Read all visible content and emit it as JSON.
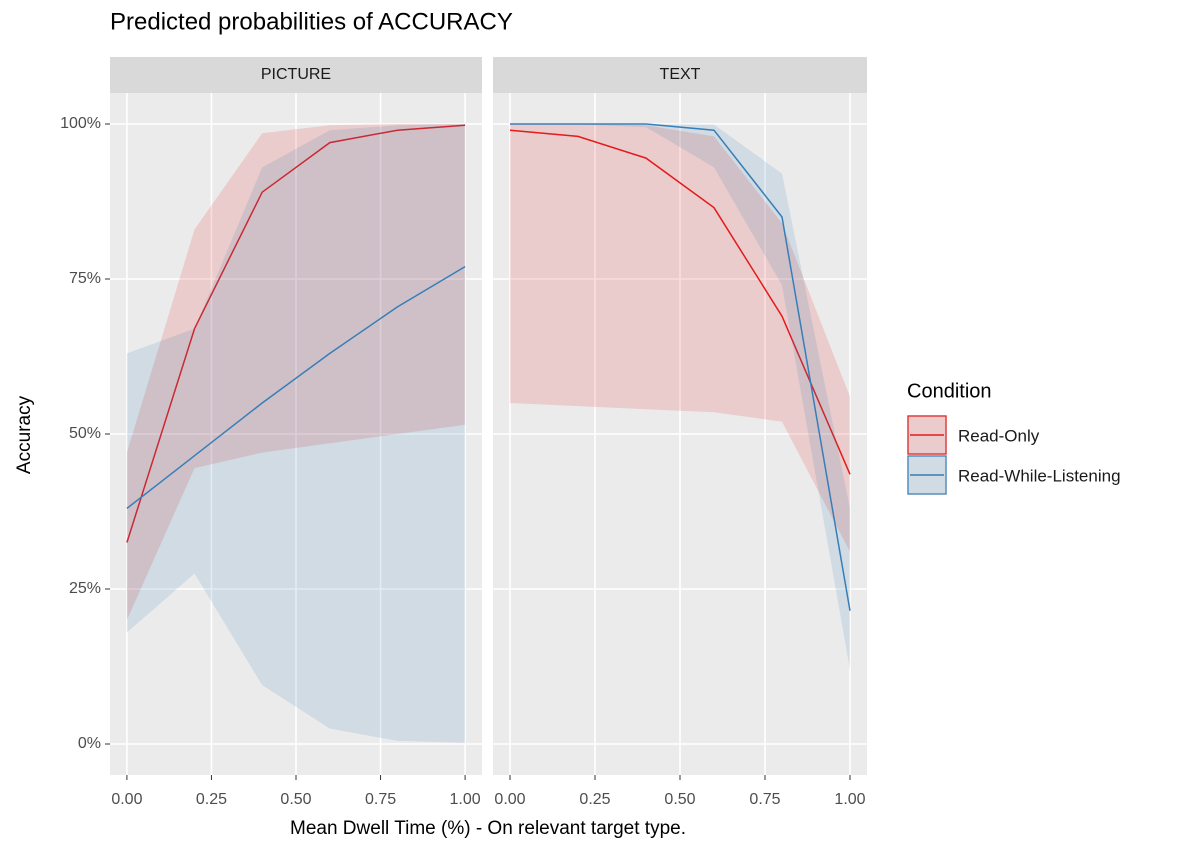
{
  "chart_data": {
    "type": "line",
    "title": "Predicted probabilities of ACCURACY",
    "x_label": "Mean Dwell Time (%) - On relevant target type.",
    "y_label": "Accuracy",
    "legend_title": "Condition",
    "legend_position": "right",
    "grid": true,
    "x": [
      0,
      0.2,
      0.4,
      0.6,
      0.8,
      1.0
    ],
    "xlim": [
      -0.05,
      1.05
    ],
    "xticks": [
      {
        "value": 0,
        "label": "0.00"
      },
      {
        "value": 0.25,
        "label": "0.25"
      },
      {
        "value": 0.5,
        "label": "0.50"
      },
      {
        "value": 0.75,
        "label": "0.75"
      },
      {
        "value": 1,
        "label": "1.00"
      }
    ],
    "ylim": [
      -5,
      105
    ],
    "yticks": [
      {
        "value": 0,
        "label": "0%"
      },
      {
        "value": 25,
        "label": "25%"
      },
      {
        "value": 50,
        "label": "50%"
      },
      {
        "value": 75,
        "label": "75%"
      },
      {
        "value": 100,
        "label": "100%"
      }
    ],
    "series": [
      {
        "name": "Read-Only",
        "color": "#e41a1c"
      },
      {
        "name": "Read-While-Listening",
        "color": "#377eb8"
      }
    ],
    "facets": [
      {
        "name": "PICTURE",
        "series": [
          {
            "values": [
              32.5,
              67,
              89,
              97,
              99,
              99.8
            ],
            "lower": [
              20,
              44.5,
              47,
              48.5,
              50,
              51.5
            ],
            "upper": [
              47,
              83,
              98.5,
              99.8,
              100,
              100
            ]
          },
          {
            "values": [
              38,
              46.5,
              55,
              63,
              70.5,
              77
            ],
            "lower": [
              18,
              27.5,
              9.5,
              2.5,
              0.5,
              0.2
            ],
            "upper": [
              63,
              67,
              93,
              99,
              99.8,
              100
            ]
          }
        ]
      },
      {
        "name": "TEXT",
        "series": [
          {
            "values": [
              99,
              98,
              94.5,
              86.5,
              69,
              43.5
            ],
            "lower": [
              55,
              54.5,
              54,
              53.5,
              52,
              31
            ],
            "upper": [
              100,
              100,
              99.8,
              98,
              84,
              56
            ]
          },
          {
            "values": [
              100,
              100,
              100,
              99,
              85,
              21.5
            ],
            "lower": [
              99.9,
              99.9,
              99.5,
              93,
              74,
              12
            ],
            "upper": [
              100,
              100,
              100,
              99.9,
              92,
              38
            ]
          }
        ]
      }
    ]
  }
}
